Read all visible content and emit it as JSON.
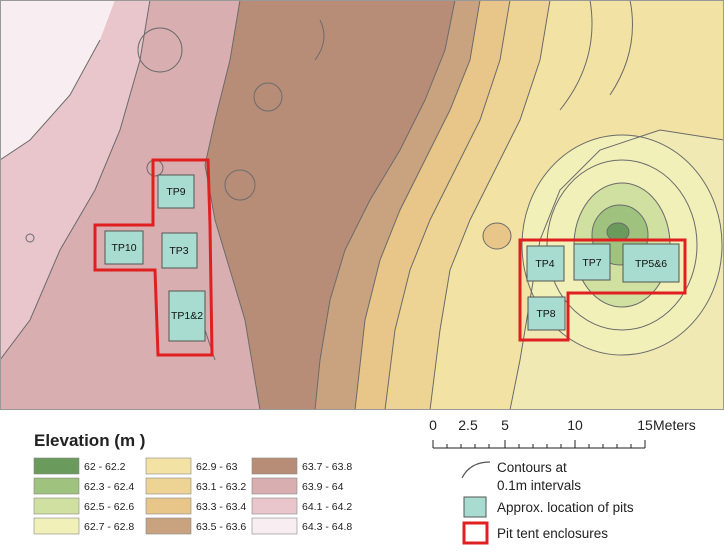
{
  "map": {
    "pits": [
      {
        "label": "TP9"
      },
      {
        "label": "TP10"
      },
      {
        "label": "TP3"
      },
      {
        "label": "TP1&2"
      },
      {
        "label": "TP4"
      },
      {
        "label": "TP7"
      },
      {
        "label": "TP5&6"
      },
      {
        "label": "TP8"
      }
    ]
  },
  "legend": {
    "title": "Elevation (m )",
    "classes": [
      {
        "label": "62 - 62.2",
        "color": "#6a9a5c"
      },
      {
        "label": "62.3 - 62.4",
        "color": "#9fc27e"
      },
      {
        "label": "62.5 - 62.6",
        "color": "#cfe0a0"
      },
      {
        "label": "62.7 - 62.8",
        "color": "#f0f0b8"
      },
      {
        "label": "62.9 - 63",
        "color": "#f2e3a4"
      },
      {
        "label": "63.1 - 63.2",
        "color": "#eed494"
      },
      {
        "label": "63.3 - 63.4",
        "color": "#e8c589"
      },
      {
        "label": "63.5 - 63.6",
        "color": "#c9a380"
      },
      {
        "label": "63.7 - 63.8",
        "color": "#b88d78"
      },
      {
        "label": "63.9 - 64",
        "color": "#d9aeb0"
      },
      {
        "label": "64.1 - 64.2",
        "color": "#e8c6cc"
      },
      {
        "label": "64.3 - 64.8",
        "color": "#f8eef2"
      }
    ],
    "scale": {
      "ticks": [
        "0",
        "2.5",
        "5",
        "10",
        "15"
      ],
      "unit": "Meters"
    },
    "items": {
      "contours_line1": "Contours at",
      "contours_line2": "0.1m intervals",
      "pits": "Approx. location of pits",
      "tents": "Pit tent enclosures"
    }
  },
  "colors": {
    "pit_fill": "#a9dcd0",
    "tent_outline": "#e02020",
    "contour": "#6b6b6b"
  }
}
